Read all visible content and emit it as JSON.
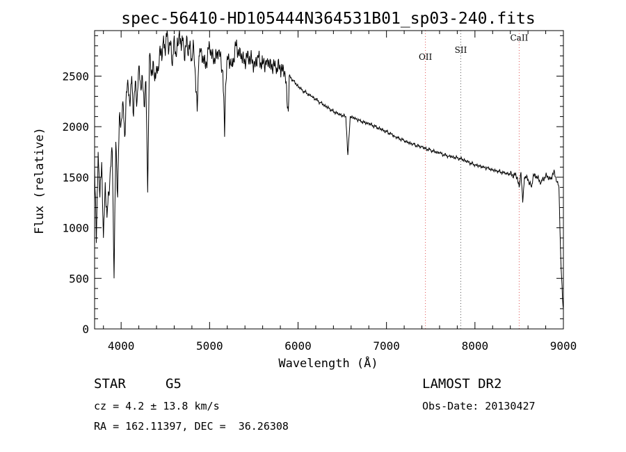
{
  "chart_data": {
    "type": "line",
    "title": "spec-56410-HD105444N364531B01_sp03-240.fits",
    "xlabel": "Wavelength (Å)",
    "ylabel": "Flux (relative)",
    "xlim": [
      3700,
      9000
    ],
    "ylim": [
      0,
      2950
    ],
    "xticks": [
      4000,
      5000,
      6000,
      7000,
      8000,
      9000
    ],
    "yticks": [
      0,
      500,
      1000,
      1500,
      2000,
      2500
    ],
    "lines": [
      {
        "label": "OII",
        "x": 7440,
        "label_flux": 2660
      },
      {
        "label": "SII",
        "x": 7840,
        "label_flux": 2730
      },
      {
        "label": "CaII",
        "x": 8500,
        "label_flux": 2850
      }
    ],
    "series": [
      {
        "name": "spectrum",
        "x": [
          3700,
          3720,
          3740,
          3760,
          3780,
          3800,
          3820,
          3840,
          3860,
          3880,
          3900,
          3920,
          3940,
          3960,
          3980,
          4000,
          4020,
          4040,
          4060,
          4080,
          4100,
          4120,
          4140,
          4160,
          4180,
          4200,
          4220,
          4240,
          4260,
          4280,
          4300,
          4320,
          4340,
          4360,
          4380,
          4400,
          4420,
          4440,
          4460,
          4480,
          4500,
          4520,
          4540,
          4560,
          4580,
          4600,
          4620,
          4640,
          4660,
          4680,
          4700,
          4720,
          4740,
          4760,
          4780,
          4800,
          4820,
          4840,
          4860,
          4880,
          4900,
          4950,
          5000,
          5050,
          5100,
          5150,
          5170,
          5180,
          5200,
          5250,
          5300,
          5350,
          5400,
          5450,
          5500,
          5550,
          5600,
          5650,
          5700,
          5750,
          5800,
          5850,
          5890,
          5900,
          5950,
          6000,
          6050,
          6100,
          6150,
          6200,
          6250,
          6300,
          6350,
          6400,
          6450,
          6500,
          6540,
          6563,
          6590,
          6650,
          6700,
          6750,
          6800,
          6850,
          6900,
          6950,
          7000,
          7050,
          7100,
          7150,
          7200,
          7250,
          7300,
          7350,
          7400,
          7450,
          7500,
          7550,
          7600,
          7650,
          7700,
          7750,
          7800,
          7850,
          7900,
          7950,
          8000,
          8050,
          8100,
          8150,
          8200,
          8250,
          8300,
          8350,
          8400,
          8450,
          8480,
          8500,
          8520,
          8540,
          8560,
          8600,
          8640,
          8660,
          8700,
          8750,
          8800,
          8850,
          8900,
          8930,
          8950,
          8970,
          8990,
          9000
        ],
        "values": [
          1600,
          850,
          1750,
          1300,
          1650,
          900,
          1450,
          1100,
          1350,
          1600,
          1750,
          500,
          1850,
          1300,
          2100,
          2050,
          2250,
          1900,
          2350,
          2400,
          2200,
          2500,
          2100,
          2450,
          2250,
          2600,
          2400,
          2500,
          2200,
          2450,
          1350,
          2700,
          2500,
          2650,
          2450,
          2600,
          2550,
          2800,
          2650,
          2900,
          2700,
          2950,
          2750,
          2850,
          2600,
          2900,
          2700,
          2800,
          2950,
          2750,
          2880,
          2650,
          2900,
          2700,
          2850,
          2650,
          2800,
          2500,
          2150,
          2700,
          2750,
          2600,
          2800,
          2650,
          2750,
          2550,
          1900,
          2400,
          2700,
          2600,
          2800,
          2700,
          2650,
          2700,
          2600,
          2680,
          2620,
          2650,
          2600,
          2580,
          2580,
          2550,
          2150,
          2500,
          2450,
          2400,
          2360,
          2330,
          2300,
          2270,
          2240,
          2210,
          2180,
          2150,
          2130,
          2110,
          2100,
          1720,
          2100,
          2080,
          2060,
          2040,
          2030,
          2010,
          1990,
          1970,
          1950,
          1930,
          1900,
          1880,
          1860,
          1840,
          1830,
          1810,
          1800,
          1780,
          1770,
          1750,
          1740,
          1720,
          1710,
          1700,
          1690,
          1680,
          1660,
          1640,
          1620,
          1610,
          1600,
          1590,
          1570,
          1560,
          1550,
          1540,
          1530,
          1520,
          1500,
          1400,
          1550,
          1250,
          1500,
          1480,
          1400,
          1530,
          1500,
          1450,
          1520,
          1480,
          1550,
          1450,
          1400,
          700,
          300,
          200
        ]
      }
    ]
  },
  "info": {
    "object_class": "STAR",
    "subclass": "G5",
    "survey": "LAMOST DR2",
    "redshift": "cz = 4.2 ± 13.8 km/s",
    "obs_date": "Obs-Date: 20130427",
    "coords": "RA = 162.11397, DEC =  36.26308"
  },
  "colors": {
    "line": "#000000",
    "marker": "#e05050",
    "marker_alt": "#555555"
  }
}
